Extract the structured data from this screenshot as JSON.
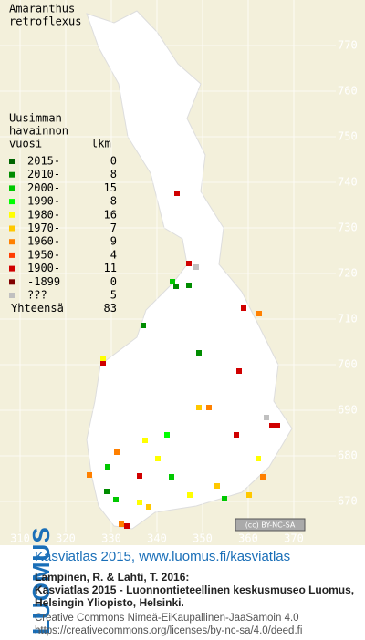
{
  "title": [
    "Amaranthus",
    "retroflexus"
  ],
  "legend": {
    "heading": [
      "Uusimman",
      "havainnon",
      "vuosi"
    ],
    "count_heading": "lkm",
    "rows": [
      {
        "label": "2015-",
        "count": 0,
        "color": "#006400"
      },
      {
        "label": "2010-",
        "count": 8,
        "color": "#008c00"
      },
      {
        "label": "2000-",
        "count": 15,
        "color": "#00c800"
      },
      {
        "label": "1990-",
        "count": 8,
        "color": "#00ff00"
      },
      {
        "label": "1980-",
        "count": 16,
        "color": "#ffff00"
      },
      {
        "label": "1970-",
        "count": 7,
        "color": "#ffc800"
      },
      {
        "label": "1960-",
        "count": 9,
        "color": "#ff8000"
      },
      {
        "label": "1950-",
        "count": 4,
        "color": "#ff3c00"
      },
      {
        "label": "1900-",
        "count": 11,
        "color": "#d00000"
      },
      {
        "label": "-1899",
        "count": 0,
        "color": "#800000"
      },
      {
        "label": "???",
        "count": 5,
        "color": "#c0c0c0"
      }
    ],
    "total_label": "Yhteensä",
    "total": 83
  },
  "grid": {
    "x_labels": [
      310,
      320,
      330,
      340,
      350,
      360,
      370
    ],
    "y_labels": [
      770,
      760,
      750,
      740,
      730,
      720,
      710,
      700,
      690,
      680,
      670
    ]
  },
  "license_badge": "(cc) BY-NC-SA",
  "footer": {
    "brand": "LUOMUS",
    "link": "Kasviatlas 2015, www.luomus.fi/kasviatlas",
    "citation": [
      "Lampinen, R. & Lahti, T. 2016:",
      "Kasviatlas 2015 - Luonnontieteellinen keskusmuseo Luomus,",
      "Helsingin Yliopisto, Helsinki."
    ],
    "license": [
      "Creative Commons Nimeä-EiKaupallinen-JaaSamoin 4.0",
      "https://creativecommons.org/licenses/by-nc-sa/4.0/deed.fi"
    ]
  }
}
